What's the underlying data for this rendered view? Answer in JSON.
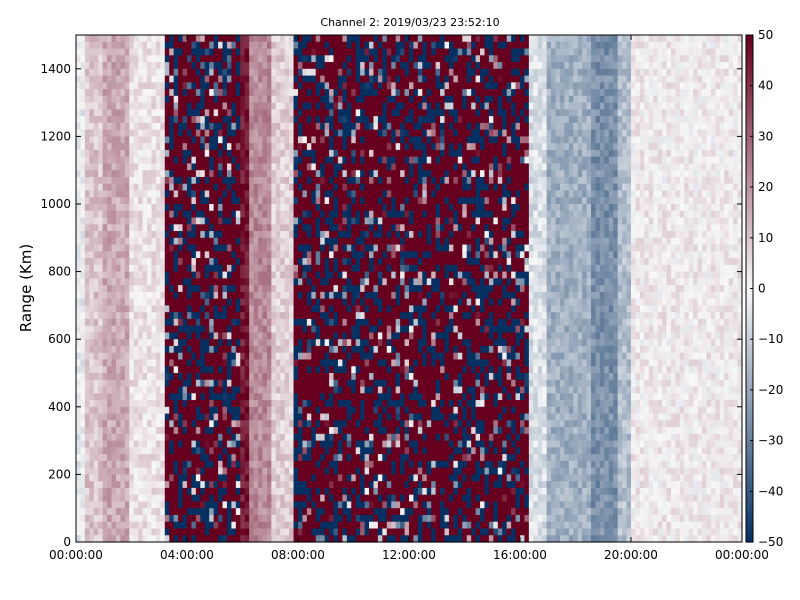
{
  "chart_data": {
    "type": "heatmap",
    "title": "Channel 2: 2019/03/23 23:52:10",
    "xlabel": "",
    "ylabel": "Range (Km)",
    "x_ticks": [
      "00:00:00",
      "04:00:00",
      "08:00:00",
      "12:00:00",
      "16:00:00",
      "20:00:00",
      "00:00:00"
    ],
    "y_ticks": [
      0,
      200,
      400,
      600,
      800,
      1000,
      1200,
      1400
    ],
    "ylim": [
      0,
      1500
    ],
    "xlim_hours": [
      0,
      24
    ],
    "colorbar": {
      "colormap": "RdBu_r",
      "range": [
        -50,
        50
      ],
      "ticks": [
        -50,
        -40,
        -30,
        -20,
        -10,
        0,
        10,
        20,
        30,
        40,
        50
      ]
    },
    "grid": false,
    "bands": [
      {
        "start_h": 0.0,
        "end_h": 0.4,
        "value": -2
      },
      {
        "start_h": 0.4,
        "end_h": 1.0,
        "value": 10
      },
      {
        "start_h": 1.0,
        "end_h": 2.0,
        "value": 16
      },
      {
        "start_h": 2.0,
        "end_h": 3.2,
        "value": 4
      },
      {
        "start_h": 3.2,
        "end_h": 6.0,
        "value": null
      },
      {
        "start_h": 6.0,
        "end_h": 6.2,
        "value": 45
      },
      {
        "start_h": 6.2,
        "end_h": 7.0,
        "value": 22
      },
      {
        "start_h": 7.0,
        "end_h": 7.8,
        "value": 8
      },
      {
        "start_h": 7.8,
        "end_h": 16.3,
        "value": null
      },
      {
        "start_h": 16.3,
        "end_h": 17.0,
        "value": -6
      },
      {
        "start_h": 17.0,
        "end_h": 18.5,
        "value": -18
      },
      {
        "start_h": 18.5,
        "end_h": 19.5,
        "value": -26
      },
      {
        "start_h": 19.5,
        "end_h": 20.0,
        "value": -14
      },
      {
        "start_h": 20.0,
        "end_h": 24.0,
        "value": 2
      }
    ]
  },
  "colors": {
    "low": "#053061",
    "mid": "#f7f7f7",
    "high": "#67001f"
  }
}
